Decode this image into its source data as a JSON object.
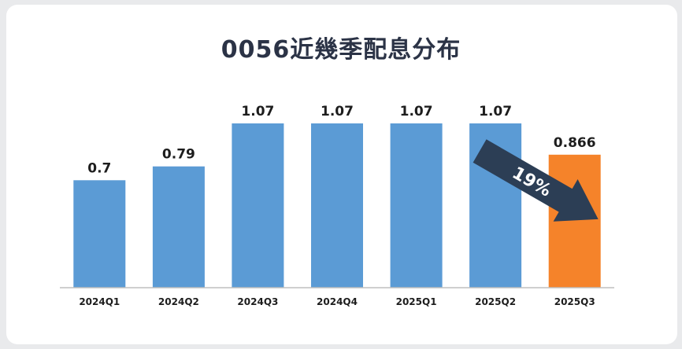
{
  "chart_data": {
    "type": "bar",
    "title": "0056近幾季配息分布",
    "categories": [
      "2024Q1",
      "2024Q2",
      "2024Q3",
      "2024Q4",
      "2025Q1",
      "2025Q2",
      "2025Q3"
    ],
    "values": [
      0.7,
      0.79,
      1.07,
      1.07,
      1.07,
      1.07,
      0.866
    ],
    "value_labels": [
      "0.7",
      "0.79",
      "1.07",
      "1.07",
      "1.07",
      "1.07",
      "0.866"
    ],
    "bar_colors": [
      "#5b9bd5",
      "#5b9bd5",
      "#5b9bd5",
      "#5b9bd5",
      "#5b9bd5",
      "#5b9bd5",
      "#f5832a"
    ],
    "ylim": [
      0,
      1.45
    ],
    "grid": false,
    "annotation": {
      "text": "19%",
      "from_category": "2025Q2",
      "to_category": "2025Q3",
      "color": "#2c3e55"
    }
  }
}
